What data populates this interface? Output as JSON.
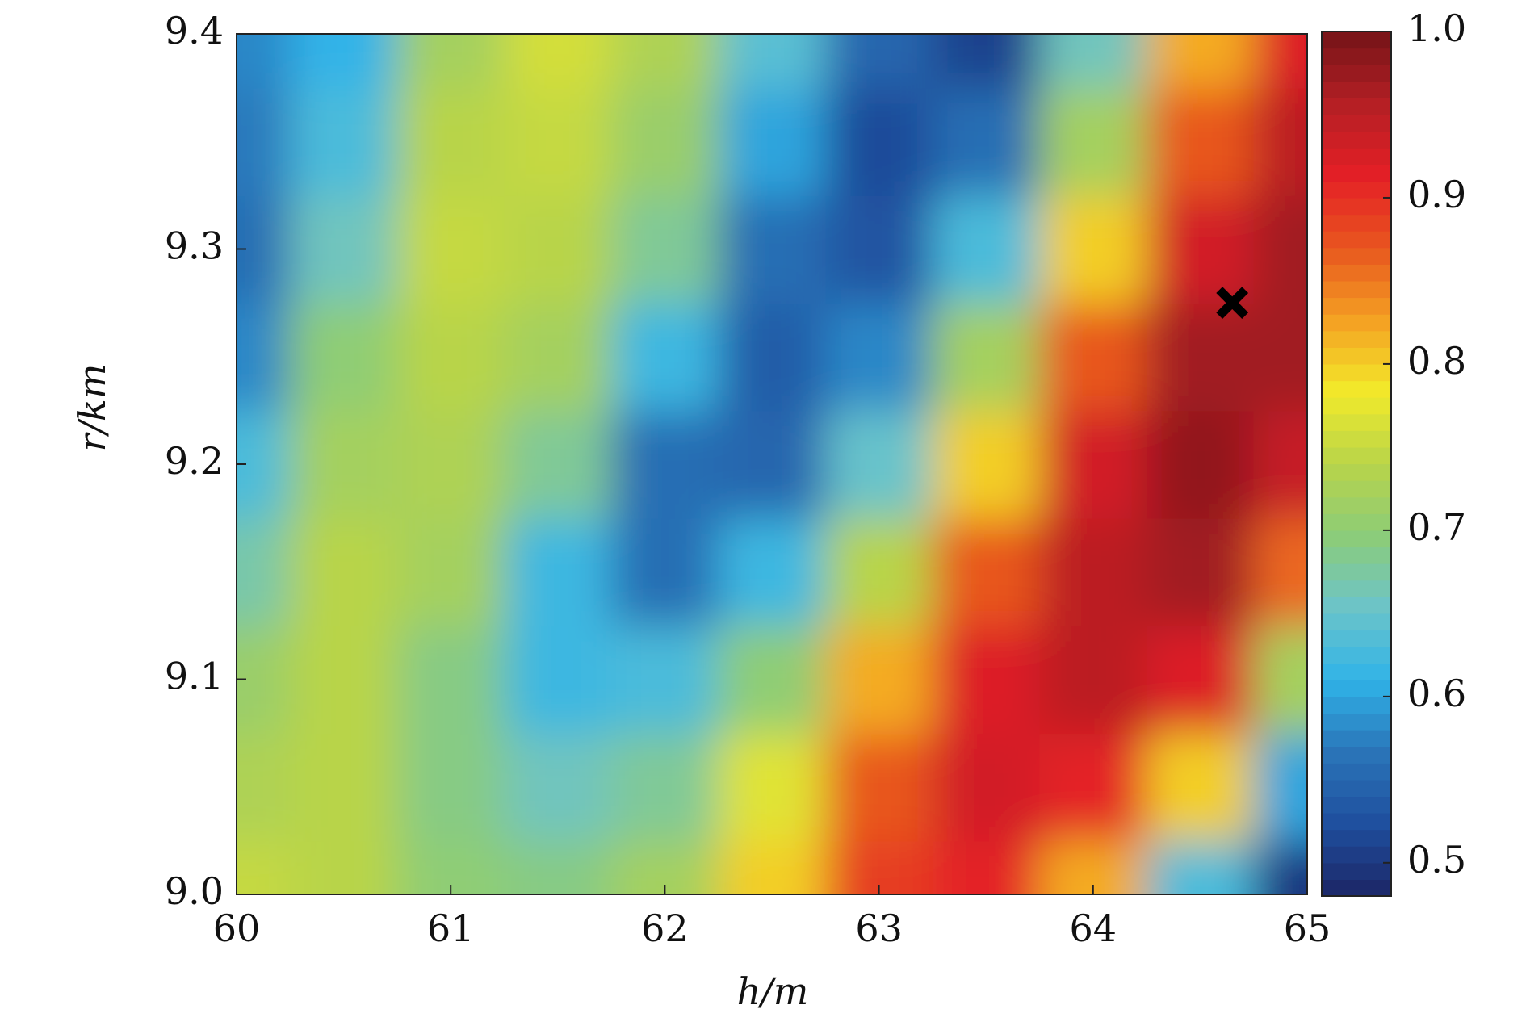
{
  "chart_data": {
    "type": "heatmap",
    "x_label": "h/m",
    "y_label": "r/km",
    "x": [
      60,
      60.5,
      61,
      61.5,
      62,
      62.5,
      63,
      63.5,
      64,
      64.5,
      65
    ],
    "y": [
      9,
      9.05,
      9.1,
      9.15,
      9.2,
      9.25,
      9.3,
      9.35,
      9.4
    ],
    "z": [
      [
        0.75,
        0.74,
        0.7,
        0.69,
        0.72,
        0.8,
        0.89,
        0.91,
        0.82,
        0.63,
        0.5
      ],
      [
        0.73,
        0.74,
        0.69,
        0.66,
        0.68,
        0.77,
        0.87,
        0.93,
        0.91,
        0.8,
        0.6
      ],
      [
        0.71,
        0.74,
        0.69,
        0.62,
        0.63,
        0.7,
        0.82,
        0.92,
        0.95,
        0.92,
        0.72
      ],
      [
        0.67,
        0.74,
        0.72,
        0.62,
        0.56,
        0.62,
        0.74,
        0.87,
        0.95,
        0.97,
        0.86
      ],
      [
        0.63,
        0.72,
        0.73,
        0.68,
        0.56,
        0.55,
        0.65,
        0.8,
        0.93,
        0.98,
        0.94
      ],
      [
        0.58,
        0.7,
        0.74,
        0.72,
        0.62,
        0.54,
        0.58,
        0.72,
        0.87,
        0.97,
        0.97
      ],
      [
        0.56,
        0.66,
        0.75,
        0.74,
        0.68,
        0.56,
        0.53,
        0.63,
        0.8,
        0.93,
        0.97
      ],
      [
        0.57,
        0.63,
        0.74,
        0.75,
        0.71,
        0.6,
        0.52,
        0.56,
        0.72,
        0.87,
        0.95
      ],
      [
        0.58,
        0.61,
        0.72,
        0.76,
        0.73,
        0.64,
        0.55,
        0.51,
        0.66,
        0.82,
        0.92
      ]
    ],
    "xlim": [
      60,
      65
    ],
    "ylim": [
      9,
      9.4
    ],
    "xticks": [
      60,
      61,
      62,
      63,
      64,
      65
    ],
    "yticks": [
      {
        "value": 9,
        "label": "9.0"
      },
      9.1,
      9.2,
      9.3,
      9.4
    ],
    "clim": [
      0.48,
      1.0
    ],
    "cticks": [
      0.5,
      0.6,
      0.7,
      0.8,
      0.9,
      {
        "value": 1,
        "label": "1.0"
      }
    ],
    "colormap": [
      "#1c2566",
      "#1f4f9e",
      "#2a74b8",
      "#30b3e8",
      "#6cc4c9",
      "#8ccc78",
      "#b8d44a",
      "#f2ea2a",
      "#f4a023",
      "#e8561f",
      "#e41f26",
      "#b41f24",
      "#751418"
    ],
    "marker": {
      "x": 64.65,
      "y": 9.275
    }
  }
}
